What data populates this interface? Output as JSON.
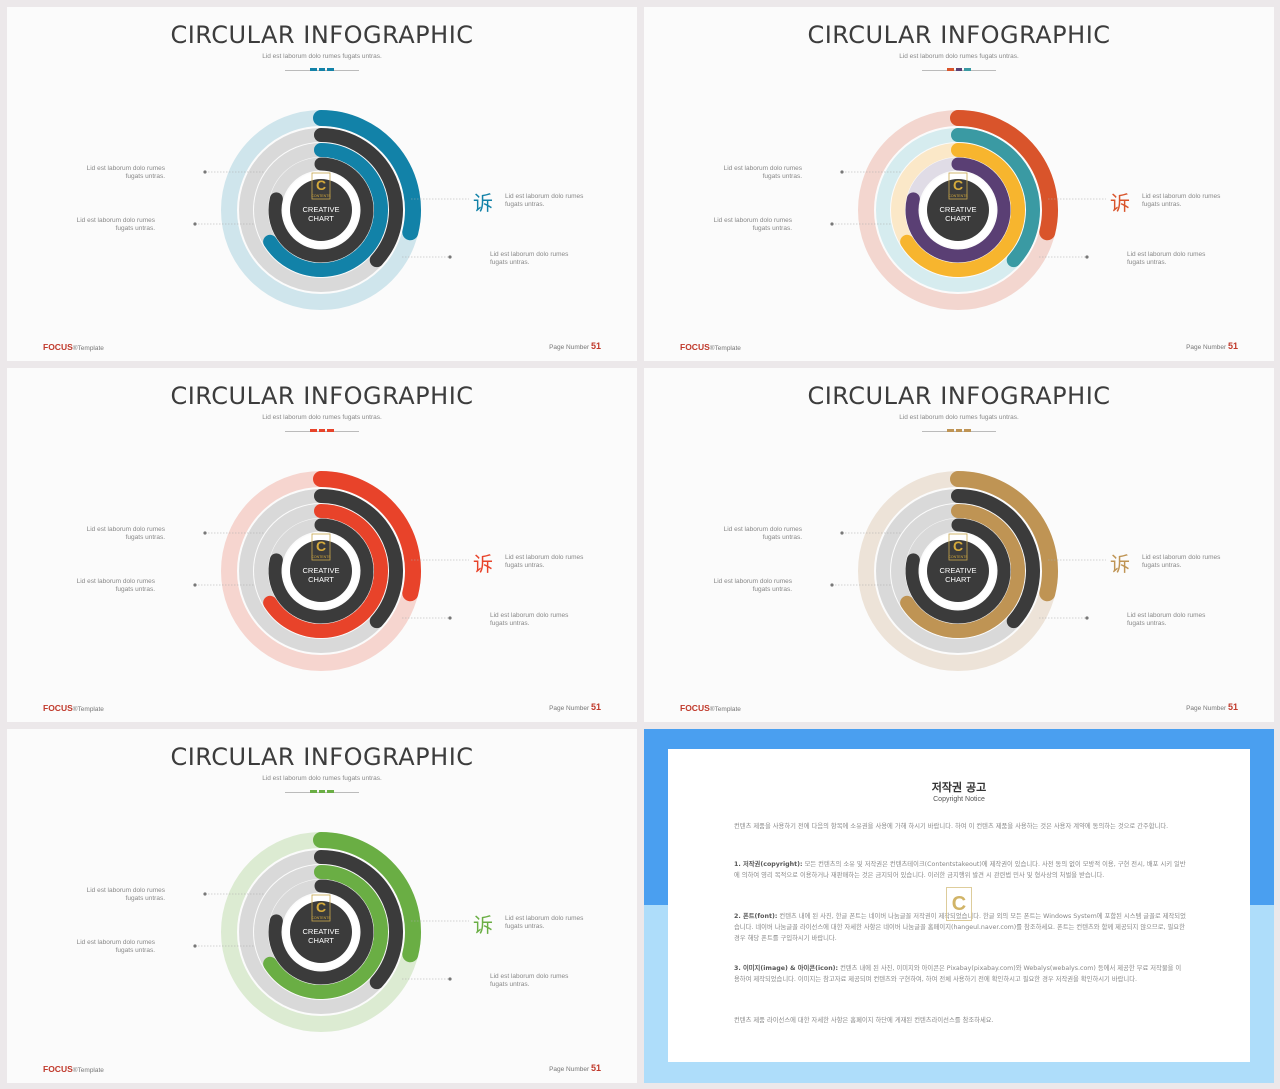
{
  "slides": [
    {
      "title": "CIRCULAR INFOGRAPHIC",
      "subtitle": "Lid est laborum dolo rumes fugats untras.",
      "accent": "#1282a8",
      "bg_ring": "#cfe5ec",
      "colors": [
        "#1282a8",
        "#3b3b3b",
        "#1282a8",
        "#3b3b3b"
      ],
      "center_line1": "CREATIVE",
      "center_line2": "CHART",
      "logo_text": "CONTENTS",
      "icon": "诉",
      "labels": [
        "Lid est laborum dolo rumes fugats untras.",
        "Lid est laborum dolo rumes fugats untras.",
        "Lid est laborum dolo rumes fugats untras.",
        "Lid est laborum dolo rumes fugats untras."
      ],
      "brand": "FOCUS",
      "brand_suffix": "®Template",
      "page_label": "Page Number",
      "page_number": "51"
    },
    {
      "title": "CIRCULAR INFOGRAPHIC",
      "subtitle": "Lid est laborum dolo rumes fugats untras.",
      "accent": "#d9542b",
      "bg_ring": "#f3d6cf",
      "colors": [
        "#d9542b",
        "#3a9aa3",
        "#f7b52e",
        "#5a3f74"
      ],
      "ring_fills": [
        "#d6ecef",
        "#fbe8c8",
        "#e0dce6"
      ],
      "center_line1": "CREATIVE",
      "center_line2": "CHART",
      "logo_text": "CONTENTS",
      "icon": "诉",
      "labels": [
        "Lid est laborum dolo rumes fugats untras.",
        "Lid est laborum dolo rumes fugats untras.",
        "Lid est laborum dolo rumes fugats untras.",
        "Lid est laborum dolo rumes fugats untras."
      ],
      "brand": "FOCUS",
      "brand_suffix": "®Template",
      "page_label": "Page Number",
      "page_number": "51"
    },
    {
      "title": "CIRCULAR INFOGRAPHIC",
      "subtitle": "Lid est laborum dolo rumes fugats untras.",
      "accent": "#e8432a",
      "bg_ring": "#f6d5cf",
      "colors": [
        "#e8432a",
        "#3b3b3b",
        "#e8432a",
        "#3b3b3b"
      ],
      "center_line1": "CREATIVE",
      "center_line2": "CHART",
      "logo_text": "CONTENTS",
      "icon": "诉",
      "labels": [
        "Lid est laborum dolo rumes fugats untras.",
        "Lid est laborum dolo rumes fugats untras.",
        "Lid est laborum dolo rumes fugats untras.",
        "Lid est laborum dolo rumes fugats untras."
      ],
      "brand": "FOCUS",
      "brand_suffix": "®Template",
      "page_label": "Page Number",
      "page_number": "51"
    },
    {
      "title": "CIRCULAR INFOGRAPHIC",
      "subtitle": "Lid est laborum dolo rumes fugats untras.",
      "accent": "#bf9454",
      "bg_ring": "#ede3d8",
      "colors": [
        "#bf9454",
        "#3b3b3b",
        "#bf9454",
        "#3b3b3b"
      ],
      "center_line1": "CREATIVE",
      "center_line2": "CHART",
      "logo_text": "CONTENTS",
      "icon": "诉",
      "labels": [
        "Lid est laborum dolo rumes fugats untras.",
        "Lid est laborum dolo rumes fugats untras.",
        "Lid est laborum dolo rumes fugats untras.",
        "Lid est laborum dolo rumes fugats untras."
      ],
      "brand": "FOCUS",
      "brand_suffix": "®Template",
      "page_label": "Page Number",
      "page_number": "51"
    },
    {
      "title": "CIRCULAR INFOGRAPHIC",
      "subtitle": "Lid est laborum dolo rumes fugats untras.",
      "accent": "#6aae44",
      "bg_ring": "#dcebd2",
      "colors": [
        "#6aae44",
        "#3b3b3b",
        "#6aae44",
        "#3b3b3b"
      ],
      "center_line1": "CREATIVE",
      "center_line2": "CHART",
      "logo_text": "CONTENTS",
      "icon": "诉",
      "labels": [
        "Lid est laborum dolo rumes fugats untras.",
        "Lid est laborum dolo rumes fugats untras.",
        "Lid est laborum dolo rumes fugats untras.",
        "Lid est laborum dolo rumes fugats untras."
      ],
      "brand": "FOCUS",
      "brand_suffix": "®Template",
      "page_label": "Page Number",
      "page_number": "51"
    }
  ],
  "copyright": {
    "title": "저작권 공고",
    "subtitle": "Copyright Notice",
    "intro": "컨텐츠 제품을 사용하기 전에 다음의 항목에 소유권을 사용에 가해 하시기 바랍니다. 하여 이 컨텐츠 제품을 사용하는 것은 사용자 계약에 동의하는 것으로 간주합니다.",
    "p1_head": "1. 저작권(copyright):",
    "p1": "모든 컨텐츠의 소유 및 저작권은 컨텐츠테이크(Contentstakeout)에 제작권이 있습니다. 사전 동의 없이 모방적 이용, 구현 전시, 배포 시키 일반에 의하여 영리 목적으로 이용하거나 재판매하는 것은 금지되어 있습니다. 이러한 금지행위 발견 시 관련법 민사 및 형사상의 처벌을 받습니다.",
    "p2_head": "2. 폰트(font):",
    "p2": "컨텐츠 내에 된 사진, 한글 폰트는 네이버 나눔글꼴 저작권이 제작되었습니다. 한글 외의 모든 폰트는 Windows System에 포함된 시스템 글꼴로 제작되었습니다. 네이버 나눔글꼴 라이선스에 대한 자세한 사항은 네이버 나눔글꼴 홈페이지(hangeul.naver.com)를 참조하세요. 폰트는 컨텐츠와 함께 제공되지 않으므로, 필요한 경우 해당 폰트를 구입하시기 바랍니다.",
    "p3_head": "3. 이미지(image) & 아이콘(icon):",
    "p3": "컨텐츠 내에 된 사진, 이미지와 아이콘은 Pixabay(pixabay.com)와 Webalys(webalys.com) 등에서 제공한 무료 저작물을 이용하여 제작되었습니다. 이미지는 참고자료 제공되며 컨텐츠와 구현하여, 하여 전체 사용하기 전에 확인하시고 필요한 경우 저작권을 확인하시기 바랍니다.",
    "outro": "컨텐츠 제품 라이선스에 대한 자세한 사항은 홈페이지 하단에 게재된 컨텐츠라이선스를 참조하세요.",
    "logo": "C"
  }
}
